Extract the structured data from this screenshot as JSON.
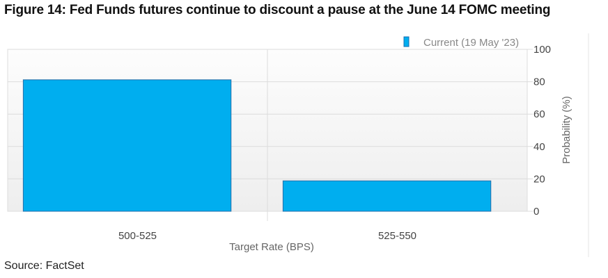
{
  "title": "Figure 14: Fed Funds futures continue to discount a pause at the June 14 FOMC meeting",
  "source": "Source: FactSet",
  "chart_data": {
    "type": "bar",
    "categories": [
      "500-525",
      "525-550"
    ],
    "series": [
      {
        "name": "Current (19 May '23)",
        "values": [
          81.2,
          18.8
        ],
        "color": "#00AEEF"
      }
    ],
    "xlabel": "Target Rate (BPS)",
    "ylabel": "Probability (%)",
    "ylim": [
      0,
      100
    ],
    "yticks": [
      0,
      20,
      40,
      60,
      80,
      100
    ],
    "grid": true,
    "legend": "top-right",
    "yaxis_side": "right"
  }
}
